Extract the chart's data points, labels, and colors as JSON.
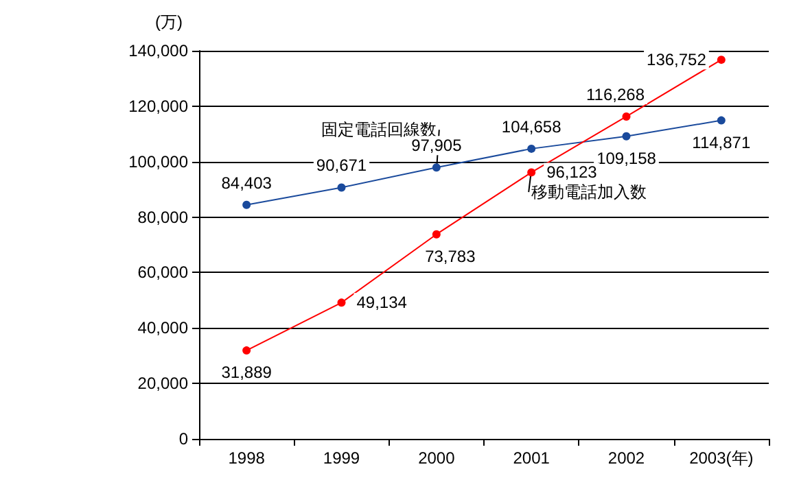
{
  "chart_data": {
    "type": "line",
    "categories": [
      "1998",
      "1999",
      "2000",
      "2001",
      "2002",
      "2003"
    ],
    "xlabel": "(年)",
    "ylabel": "(万)",
    "series": [
      {
        "name": "固定電話回線数",
        "color": "#1a4a9c",
        "values": [
          84403,
          90671,
          97905,
          104658,
          109158,
          114871
        ],
        "value_labels": [
          "84,403",
          "90,671",
          "97,905",
          "104,658",
          "109,158",
          "114,871"
        ]
      },
      {
        "name": "移動電話加入数",
        "color": "#ff0000",
        "values": [
          31889,
          49134,
          73783,
          96123,
          116268,
          136752
        ],
        "value_labels": [
          "31,889",
          "49,134",
          "73,783",
          "96,123",
          "116,268",
          "136,752"
        ]
      }
    ],
    "ylim": [
      0,
      140000
    ],
    "yticks": [
      0,
      {
        "value": 20000,
        "label": "20,000"
      },
      {
        "value": 40000,
        "label": "40,000"
      },
      {
        "value": 60000,
        "label": "60,000"
      },
      {
        "value": 80000,
        "label": "80,000"
      },
      {
        "value": 100000,
        "label": "100,000"
      },
      {
        "value": 120000,
        "label": "120,000"
      },
      {
        "value": 140000,
        "label": "140,000"
      }
    ],
    "grid": "y",
    "legend": false,
    "marker": "circle",
    "line_style": "solid"
  }
}
